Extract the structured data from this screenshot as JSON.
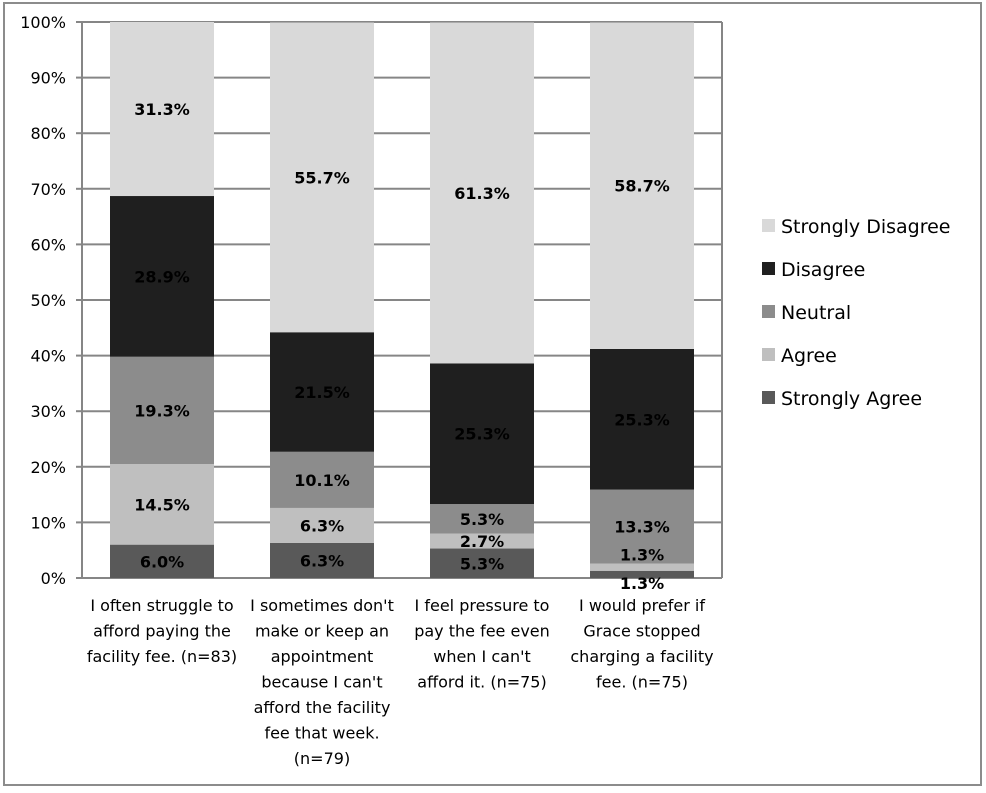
{
  "chart_data": {
    "type": "bar",
    "stacked": true,
    "title": "",
    "xlabel": "",
    "ylabel": "",
    "ylim": [
      0,
      100
    ],
    "yticks": [
      "0%",
      "10%",
      "20%",
      "30%",
      "40%",
      "50%",
      "60%",
      "70%",
      "80%",
      "90%",
      "100%"
    ],
    "grid": true,
    "legend_position": "right",
    "categories": [
      [
        "I often struggle to",
        "afford paying the",
        "facility fee. (n=83)"
      ],
      [
        "I sometimes don't",
        "make or keep an",
        "appointment",
        "because I can't",
        "afford the facility",
        "fee that week.",
        "(n=79)"
      ],
      [
        "I feel pressure to",
        "pay the fee even",
        "when I can't",
        "afford it. (n=75)"
      ],
      [
        "I would prefer if",
        "Grace stopped",
        "charging a facility",
        "fee. (n=75)"
      ]
    ],
    "series": [
      {
        "name": "Strongly Agree",
        "color": "#595959",
        "values": [
          6.0,
          6.3,
          5.3,
          1.3
        ],
        "labels": [
          "6.0%",
          "6.3%",
          "5.3%",
          "1.3%"
        ]
      },
      {
        "name": "Agree",
        "color": "#bfbfbf",
        "values": [
          14.5,
          6.3,
          2.7,
          1.3
        ],
        "labels": [
          "14.5%",
          "6.3%",
          "2.7%",
          "1.3%"
        ]
      },
      {
        "name": "Neutral",
        "color": "#8c8c8c",
        "values": [
          19.3,
          10.1,
          5.3,
          13.3
        ],
        "labels": [
          "19.3%",
          "10.1%",
          "5.3%",
          "13.3%"
        ]
      },
      {
        "name": "Disagree",
        "color": "#1f1f1f",
        "values": [
          28.9,
          21.5,
          25.3,
          25.3
        ],
        "labels": [
          "28.9%",
          "21.5%",
          "25.3%",
          "25.3%"
        ]
      },
      {
        "name": "Strongly Disagree",
        "color": "#d9d9d9",
        "values": [
          31.3,
          55.7,
          61.3,
          58.7
        ],
        "labels": [
          "31.3%",
          "55.7%",
          "61.3%",
          "58.7%"
        ]
      }
    ],
    "legend_order": [
      "Strongly Disagree",
      "Disagree",
      "Neutral",
      "Agree",
      "Strongly Agree"
    ]
  }
}
